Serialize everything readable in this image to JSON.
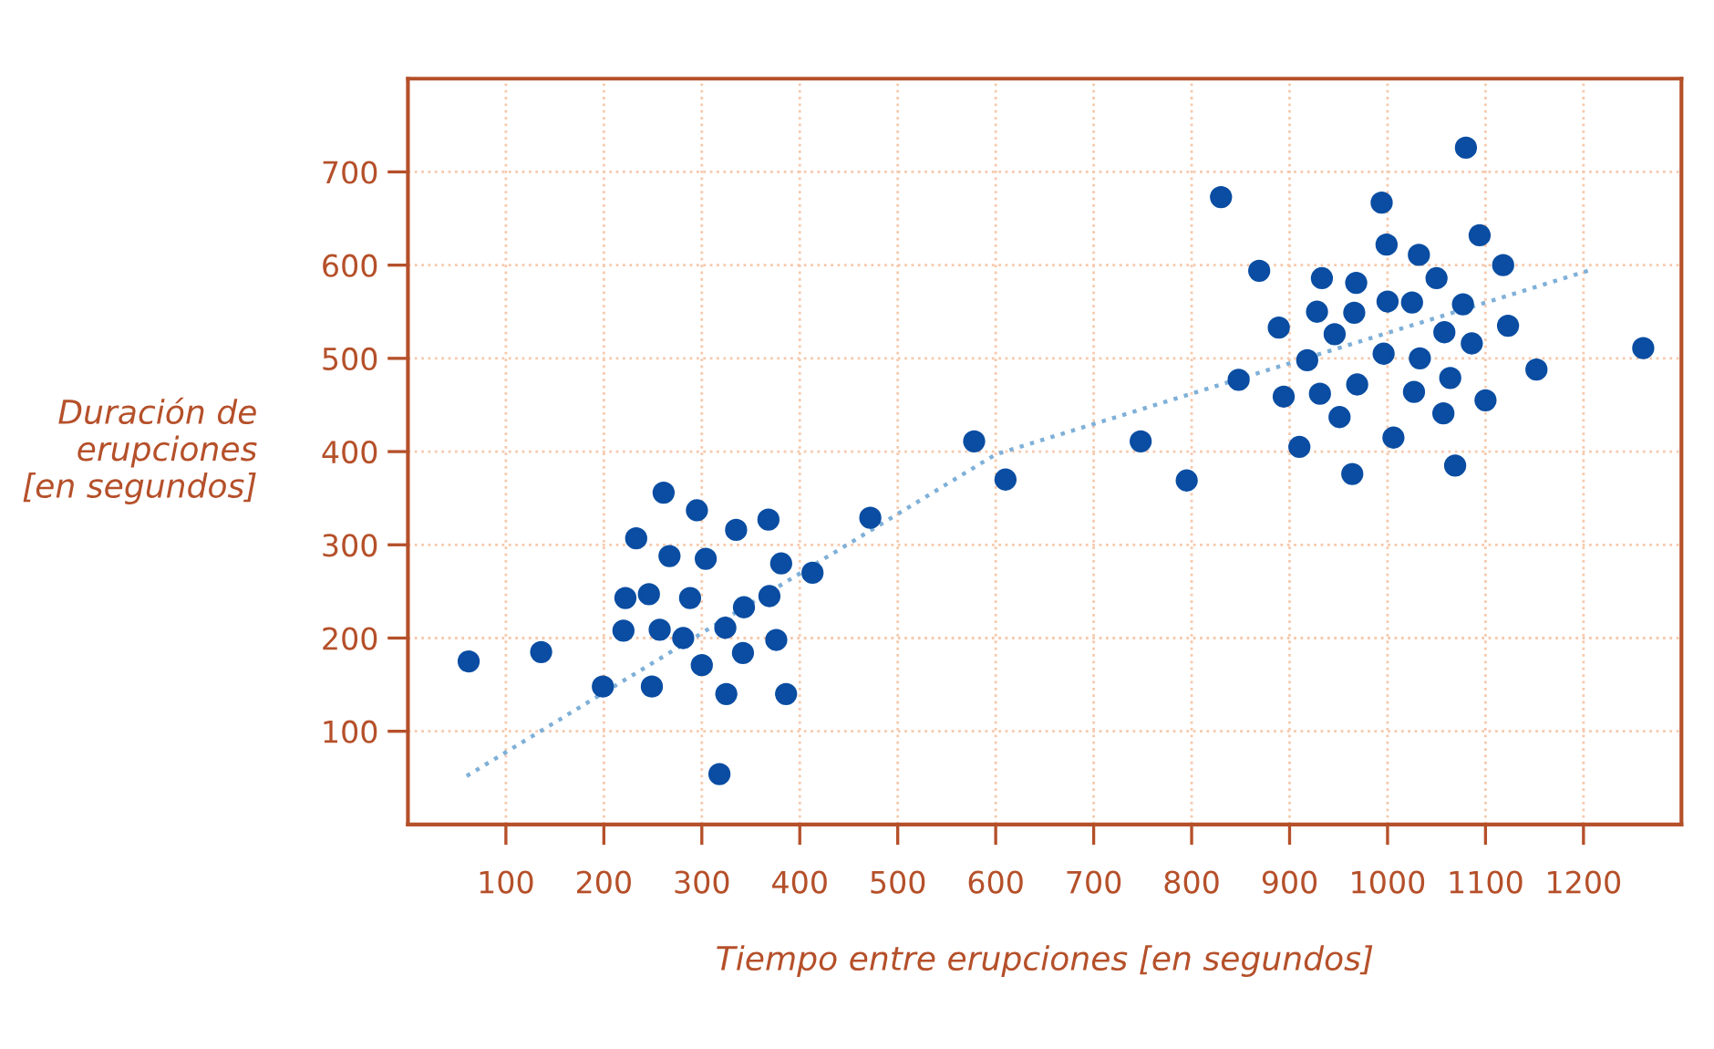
{
  "chart_data": {
    "type": "scatter",
    "xlabel": "Tiempo entre erupciones [en segundos]",
    "ylabel": "Duración de\nerupciones\n[en segundos]",
    "xlim": [
      0,
      1300
    ],
    "ylim": [
      0,
      800
    ],
    "xticks": [
      100,
      200,
      300,
      400,
      500,
      600,
      700,
      800,
      900,
      1000,
      1100,
      1200
    ],
    "yticks": [
      100,
      200,
      300,
      400,
      500,
      600,
      700
    ],
    "grid": true,
    "legend": false,
    "marker": "circle",
    "series": [
      {
        "color": "#0a4da2",
        "x": [
          62,
          136,
          199,
          220,
          222,
          233,
          246,
          249,
          257,
          261,
          267,
          281,
          288,
          295,
          300,
          304,
          318,
          324,
          325,
          335,
          342,
          343,
          368,
          369,
          376,
          381,
          386,
          413,
          472,
          578,
          610,
          748,
          795,
          830,
          848,
          869,
          889,
          894,
          910,
          918,
          928,
          931,
          933,
          946,
          951,
          964,
          966,
          968,
          969,
          994,
          996,
          999,
          1000,
          1006,
          1025,
          1027,
          1032,
          1033,
          1050,
          1057,
          1058,
          1064,
          1069,
          1077,
          1080,
          1086,
          1094,
          1100,
          1118,
          1123,
          1152,
          1261
        ],
        "values": [
          175,
          185,
          148,
          208,
          243,
          307,
          247,
          148,
          209,
          356,
          288,
          200,
          243,
          337,
          171,
          285,
          54,
          211,
          140,
          316,
          184,
          233,
          327,
          245,
          198,
          280,
          140,
          270,
          329,
          411,
          370,
          411,
          369,
          673,
          477,
          594,
          533,
          459,
          405,
          498,
          550,
          462,
          586,
          526,
          437,
          376,
          549,
          581,
          472,
          667,
          505,
          622,
          561,
          415,
          560,
          464,
          611,
          500,
          586,
          441,
          528,
          479,
          385,
          558,
          726,
          516,
          632,
          455,
          600,
          535,
          488,
          511
        ]
      },
      {
        "type": "line",
        "color": "#7fb0d8",
        "line_style": "dotted",
        "marker": "none",
        "x": [
          60,
          600,
          1211
        ],
        "values": [
          52,
          397,
          596
        ]
      }
    ]
  }
}
